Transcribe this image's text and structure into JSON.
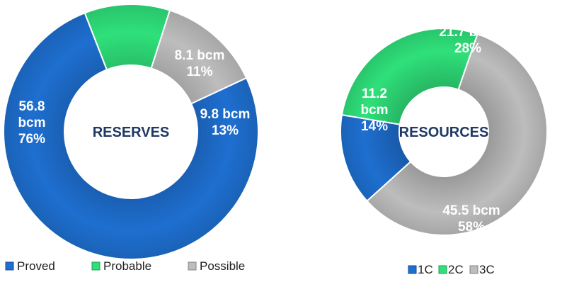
{
  "chart_data": [
    {
      "type": "pie",
      "donut": true,
      "center_label": "RESERVES",
      "legend_position": "bottom",
      "slices": [
        {
          "name": "Proved",
          "value": 56.8,
          "value_label": "56.8",
          "unit": "bcm",
          "percent_label": "76%",
          "color": "#1e6fd0"
        },
        {
          "name": "Probable",
          "value": 8.1,
          "value_label": "8.1",
          "unit": "bcm",
          "percent_label": "11%",
          "color": "#2fe07a"
        },
        {
          "name": "Possible",
          "value": 9.8,
          "value_label": "9.8",
          "unit": "bcm",
          "percent_label": "13%",
          "color": "#bdbdbd"
        }
      ]
    },
    {
      "type": "pie",
      "donut": true,
      "center_label": "RESOURCES",
      "legend_position": "bottom",
      "slices": [
        {
          "name": "1C",
          "value": 11.2,
          "value_label": "11.2",
          "unit": "bcm",
          "percent_label": "14%",
          "color": "#1e6fd0"
        },
        {
          "name": "2C",
          "value": 21.7,
          "value_label": "21.7",
          "unit": "bcm",
          "percent_label": "28%",
          "color": "#2fe07a"
        },
        {
          "name": "3C",
          "value": 45.5,
          "value_label": "45.5",
          "unit": "bcm",
          "percent_label": "58%",
          "color": "#bdbdbd"
        }
      ]
    }
  ]
}
